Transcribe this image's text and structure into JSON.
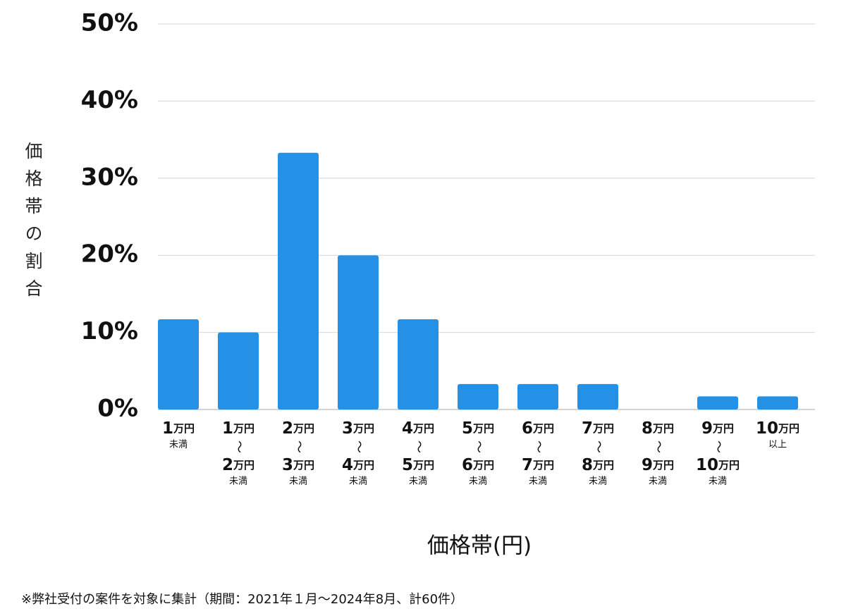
{
  "chart_data": {
    "type": "bar",
    "y_axis_label": "価格帯の割合",
    "x_axis_label": "価格帯(円)",
    "footnote": "※弊社受付の案件を対象に集計（期間：2021年１月〜2024年8月、計60件）",
    "categories": [
      [
        "1万円",
        "未満"
      ],
      [
        "1万円",
        "〜",
        "2万円",
        "未満"
      ],
      [
        "2万円",
        "〜",
        "3万円",
        "未満"
      ],
      [
        "3万円",
        "〜",
        "4万円",
        "未満"
      ],
      [
        "4万円",
        "〜",
        "5万円",
        "未満"
      ],
      [
        "5万円",
        "〜",
        "6万円",
        "未満"
      ],
      [
        "6万円",
        "〜",
        "7万円",
        "未満"
      ],
      [
        "7万円",
        "〜",
        "8万円",
        "未満"
      ],
      [
        "8万円",
        "〜",
        "9万円",
        "未満"
      ],
      [
        "9万円",
        "〜",
        "10万円",
        "未満"
      ],
      [
        "10万円",
        "以上"
      ]
    ],
    "values": [
      11.7,
      10,
      33.3,
      20,
      11.7,
      3.3,
      3.3,
      3.3,
      0,
      1.7,
      1.7
    ],
    "color": "#2591e6",
    "ylim": [
      0,
      50
    ],
    "yticks": [
      {
        "value": 0,
        "label": "0%"
      },
      {
        "value": 10,
        "label": "10%"
      },
      {
        "value": 20,
        "label": "20%"
      },
      {
        "value": 30,
        "label": "30%"
      },
      {
        "value": 40,
        "label": "40%"
      },
      {
        "value": 50,
        "label": "50%"
      }
    ],
    "grid": true
  }
}
